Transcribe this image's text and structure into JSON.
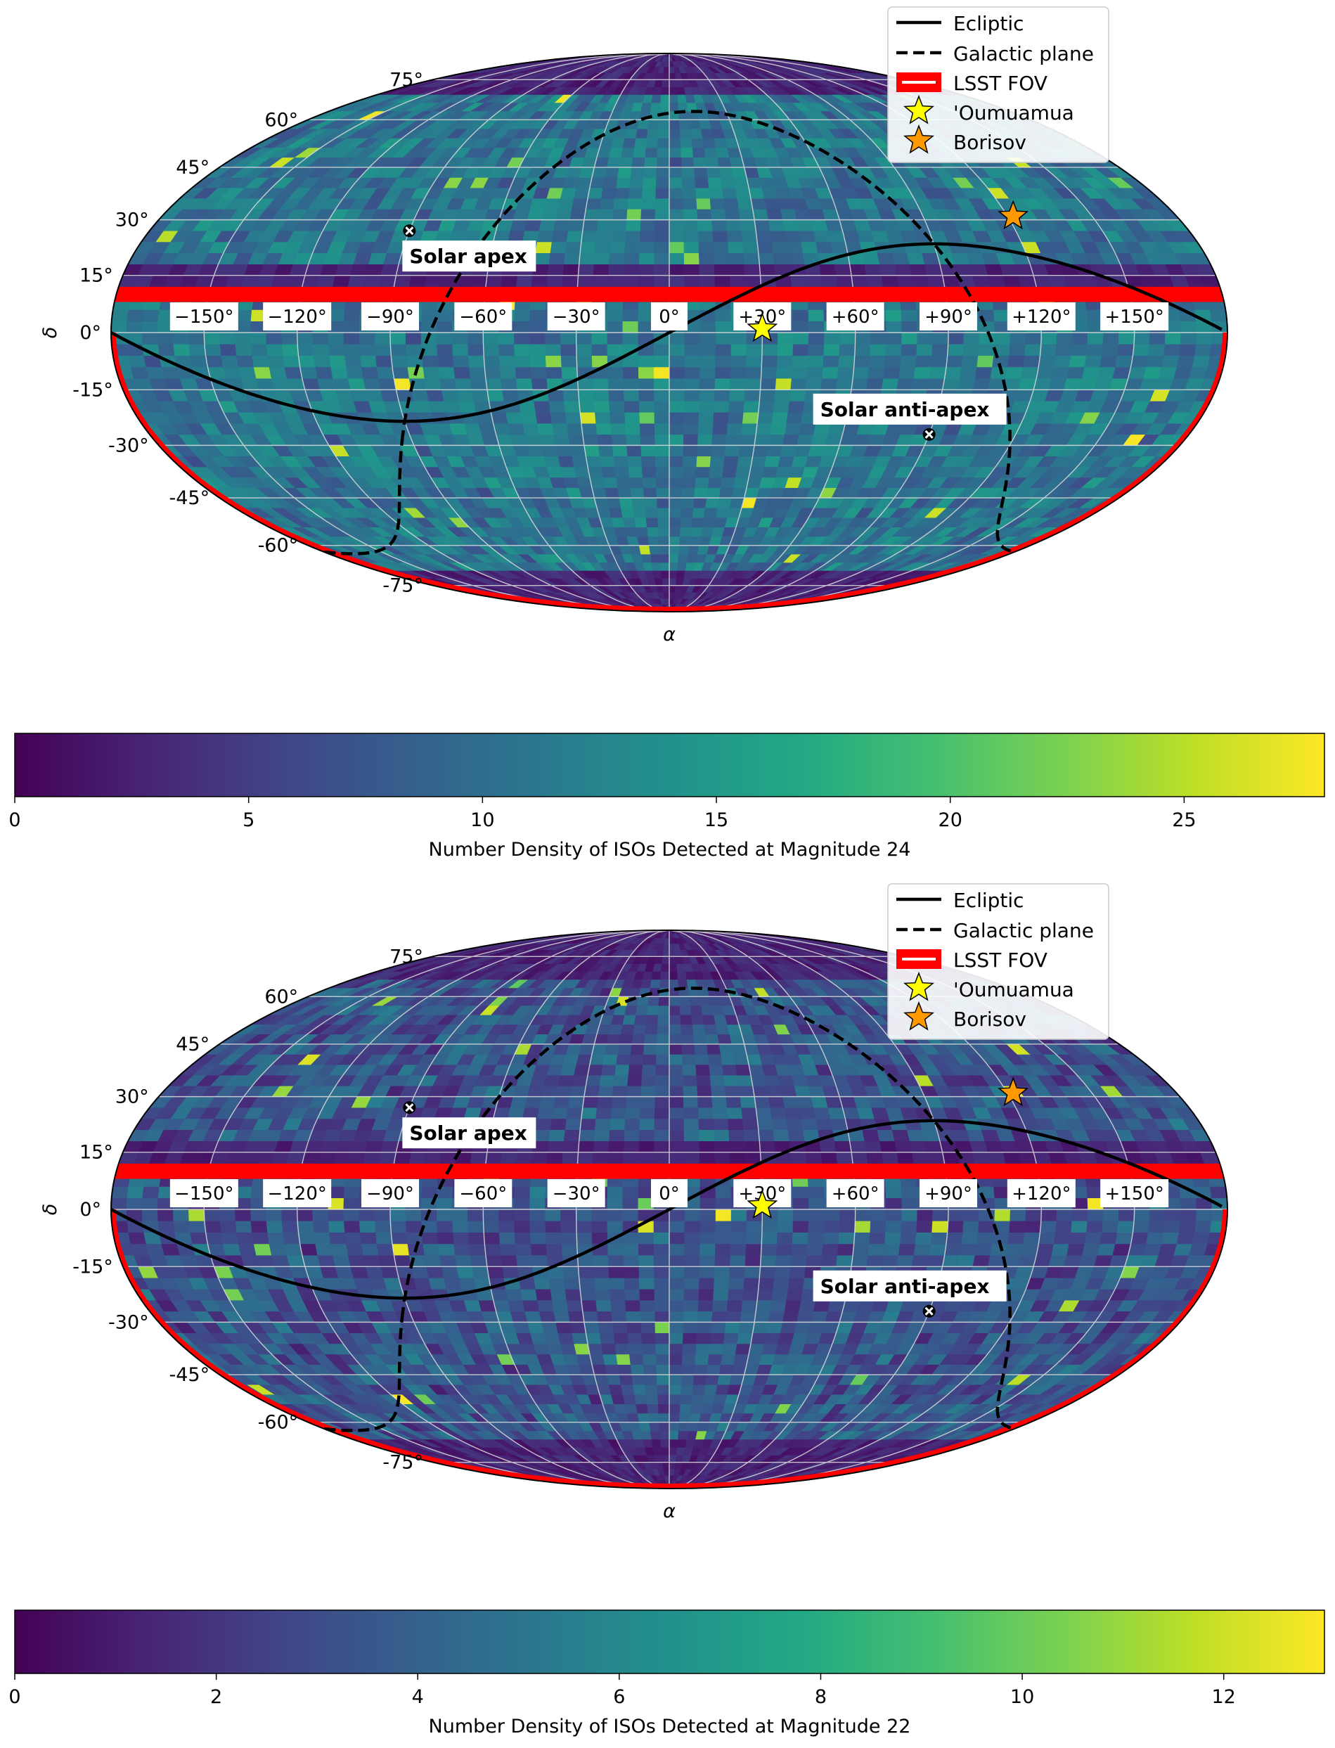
{
  "chart_data": [
    {
      "type": "heatmap",
      "projection": "mollweide",
      "xlabel": "α",
      "ylabel": "δ",
      "lat_ticks": [
        "75°",
        "60°",
        "45°",
        "30°",
        "15°",
        "0°",
        "-15°",
        "-30°",
        "-45°",
        "-60°",
        "-75°"
      ],
      "lat_tick_values": [
        75,
        60,
        45,
        30,
        15,
        0,
        -15,
        -30,
        -45,
        -60,
        -75
      ],
      "lon_ticks": [
        "−150°",
        "−120°",
        "−90°",
        "−60°",
        "−30°",
        "0°",
        "+30°",
        "+60°",
        "+90°",
        "+120°",
        "+150°"
      ],
      "lon_tick_values": [
        -150,
        -120,
        -90,
        -60,
        -30,
        0,
        30,
        60,
        90,
        120,
        150
      ],
      "grid": true,
      "legend_position": "top-right",
      "legend": [
        "Ecliptic",
        "Galactic plane",
        "LSST FOV",
        "'Oumuamua",
        "Borisov"
      ],
      "annotations": [
        {
          "text": "Solar apex",
          "lon": -90,
          "lat": 27
        },
        {
          "text": "Solar anti-apex",
          "lon": 90,
          "lat": -27
        }
      ],
      "points": [
        {
          "name": "'Oumuamua",
          "lon": 30,
          "lat": 1,
          "color": "#ffff00"
        },
        {
          "name": "Borisov",
          "lon": 122,
          "lat": 31,
          "color": "#ff9900"
        }
      ],
      "lsst_fov_band": {
        "lat_min": 8,
        "lat_max": 12,
        "color": "#ff0000"
      },
      "colorbar": {
        "label": "Number Density of ISOs Detected at Magnitude 24",
        "min": 0,
        "max": 28,
        "ticks": [
          0,
          5,
          10,
          15,
          20,
          25
        ],
        "tick_labels": [
          "0",
          "5",
          "10",
          "15",
          "20",
          "25"
        ],
        "colormap": "viridis"
      },
      "density_typical_range": [
        6,
        14
      ],
      "seed": 7
    },
    {
      "type": "heatmap",
      "projection": "mollweide",
      "xlabel": "α",
      "ylabel": "δ",
      "lat_ticks": [
        "75°",
        "60°",
        "45°",
        "30°",
        "15°",
        "0°",
        "-15°",
        "-30°",
        "-45°",
        "-60°",
        "-75°"
      ],
      "lat_tick_values": [
        75,
        60,
        45,
        30,
        15,
        0,
        -15,
        -30,
        -45,
        -60,
        -75
      ],
      "lon_ticks": [
        "−150°",
        "−120°",
        "−90°",
        "−60°",
        "−30°",
        "0°",
        "+30°",
        "+60°",
        "+90°",
        "+120°",
        "+150°"
      ],
      "lon_tick_values": [
        -150,
        -120,
        -90,
        -60,
        -30,
        0,
        30,
        60,
        90,
        120,
        150
      ],
      "grid": true,
      "legend_position": "top-right",
      "legend": [
        "Ecliptic",
        "Galactic plane",
        "LSST FOV",
        "'Oumuamua",
        "Borisov"
      ],
      "annotations": [
        {
          "text": "Solar apex",
          "lon": -90,
          "lat": 27
        },
        {
          "text": "Solar anti-apex",
          "lon": 90,
          "lat": -27
        }
      ],
      "points": [
        {
          "name": "'Oumuamua",
          "lon": 30,
          "lat": 1,
          "color": "#ffff00"
        },
        {
          "name": "Borisov",
          "lon": 122,
          "lat": 31,
          "color": "#ff9900"
        }
      ],
      "lsst_fov_band": {
        "lat_min": 8,
        "lat_max": 12,
        "color": "#ff0000"
      },
      "colorbar": {
        "label": "Number Density of ISOs Detected at Magnitude 22",
        "min": 0,
        "max": 13,
        "ticks": [
          0,
          2,
          4,
          6,
          8,
          10,
          12
        ],
        "tick_labels": [
          "0",
          "2",
          "4",
          "6",
          "8",
          "10",
          "12"
        ],
        "colormap": "viridis"
      },
      "density_typical_range": [
        1,
        5
      ],
      "seed": 19
    }
  ]
}
